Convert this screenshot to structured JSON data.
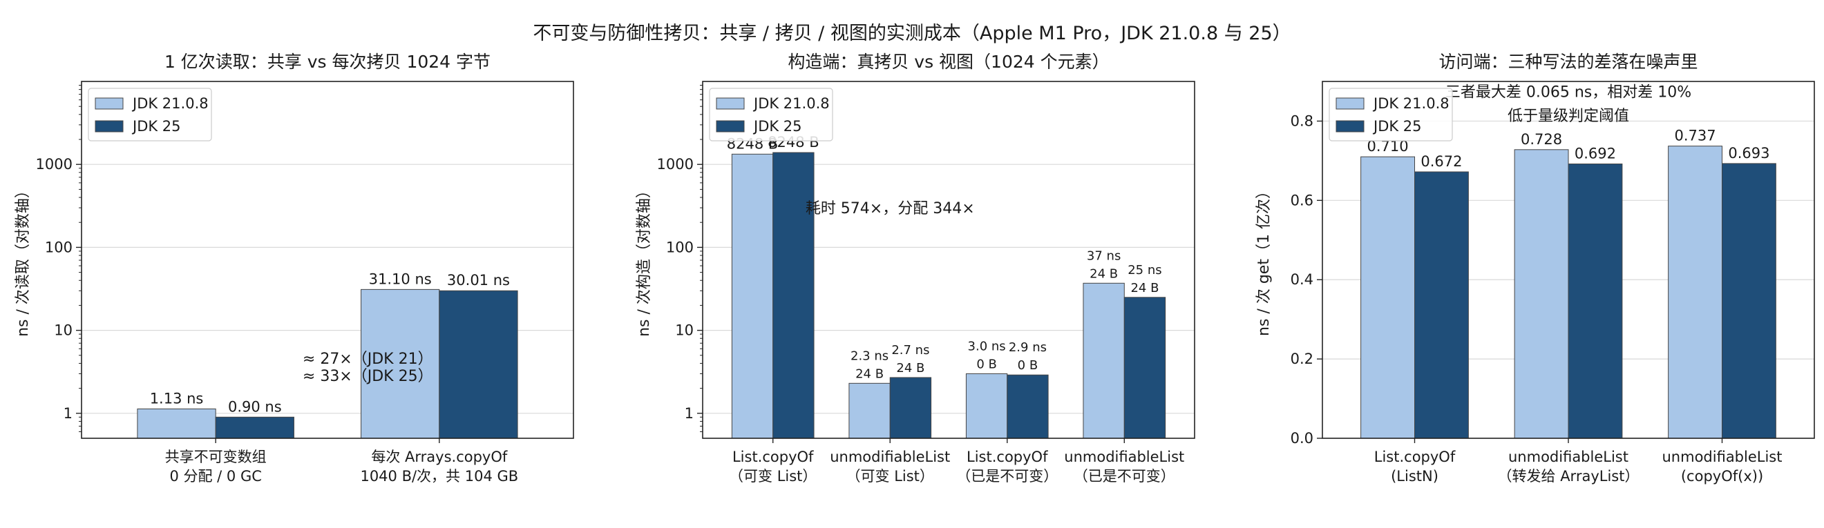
{
  "suptitle": "不可变与防御性拷贝：共享 / 拷贝 / 视图的实测成本（Apple M1 Pro，JDK 21.0.8 与 25）",
  "colors": {
    "jdk21": "#a8c6e8",
    "jdk25": "#1f4e79",
    "annotation": "#d62728",
    "grid": "#d9d9d9",
    "edge": "#444444"
  },
  "chart_data": [
    {
      "type": "bar",
      "title": "1 亿次读取：共享 vs 每次拷贝 1024 字节",
      "ylabel": "ns / 次读取（对数轴）",
      "yscale": "log",
      "ylim": [
        0.5,
        10000
      ],
      "yticks": [
        "1",
        "10",
        "100",
        "1000"
      ],
      "grid": "y",
      "legend": "top-left",
      "categories": [
        [
          "共享不可变数组",
          "0 分配 / 0 GC"
        ],
        [
          "每次 Arrays.copyOf",
          "1040 B/次，共 104 GB"
        ]
      ],
      "series": [
        {
          "name": "JDK 21.0.8",
          "values": [
            1.13,
            31.1
          ],
          "labels": [
            [
              "1.13 ns"
            ],
            [
              "31.10 ns"
            ]
          ]
        },
        {
          "name": "JDK 25",
          "values": [
            0.9,
            30.01
          ],
          "labels": [
            [
              "0.90 ns"
            ],
            [
              "30.01 ns"
            ]
          ]
        }
      ],
      "annotations": [
        {
          "text": "≈ 27×（JDK 21）",
          "at": [
            0.68,
            4.6
          ]
        },
        {
          "text": "≈ 33×（JDK 25）",
          "at": [
            0.68,
            2.85
          ]
        }
      ]
    },
    {
      "type": "bar",
      "title": "构造端：真拷贝 vs 视图（1024 个元素）",
      "ylabel": "ns / 次构造（对数轴）",
      "yscale": "log",
      "ylim": [
        0.5,
        10000
      ],
      "yticks": [
        "1",
        "10",
        "100",
        "1000"
      ],
      "grid": "y",
      "legend": "top-left",
      "categories": [
        [
          "List.copyOf",
          "（可变 List）"
        ],
        [
          "unmodifiableList",
          "（可变 List）"
        ],
        [
          "List.copyOf",
          "（已是不可变）"
        ],
        [
          "unmodifiableList",
          "（已是不可变）"
        ]
      ],
      "series": [
        {
          "name": "JDK 21.0.8",
          "values": [
            1330,
            2.3,
            3.0,
            37
          ],
          "labels": [
            [
              "8248 B"
            ],
            [
              "2.3 ns",
              "24 B"
            ],
            [
              "3.0 ns",
              "0 B"
            ],
            [
              "37 ns",
              "24 B"
            ]
          ]
        },
        {
          "name": "JDK 25",
          "values": [
            1390,
            2.7,
            2.9,
            25
          ],
          "labels": [
            [
              "8248 B"
            ],
            [
              "2.7 ns",
              "24 B"
            ],
            [
              "2.9 ns",
              "0 B"
            ],
            [
              "25 ns",
              "24 B"
            ]
          ]
        }
      ],
      "annotations": [
        {
          "text": "耗时 574×，分配 344×",
          "at": [
            1.0,
            300
          ]
        }
      ]
    },
    {
      "type": "bar",
      "title": "访问端：三种写法的差落在噪声里",
      "ylabel": "ns / 次 get（1 亿次）",
      "yscale": "linear",
      "ylim": [
        0,
        0.9
      ],
      "yticks": [
        "0.0",
        "0.2",
        "0.4",
        "0.6",
        "0.8"
      ],
      "grid": "y",
      "legend": "top-left",
      "categories": [
        [
          "List.copyOf",
          "(ListN)"
        ],
        [
          "unmodifiableList",
          "（转发给 ArrayList）"
        ],
        [
          "unmodifiableList",
          "(copyOf(x))"
        ]
      ],
      "series": [
        {
          "name": "JDK 21.0.8",
          "values": [
            0.71,
            0.728,
            0.737
          ],
          "labels": [
            [
              "0.710"
            ],
            [
              "0.728"
            ],
            [
              "0.737"
            ]
          ]
        },
        {
          "name": "JDK 25",
          "values": [
            0.672,
            0.692,
            0.693
          ],
          "labels": [
            [
              "0.672"
            ],
            [
              "0.692"
            ],
            [
              "0.693"
            ]
          ]
        }
      ],
      "annotations": [
        {
          "text": "三者最大差 0.065 ns，相对差 10%",
          "at": [
            1.0,
            0.875
          ]
        },
        {
          "text": "低于量级判定阈值",
          "at": [
            1.0,
            0.815
          ]
        }
      ]
    }
  ]
}
